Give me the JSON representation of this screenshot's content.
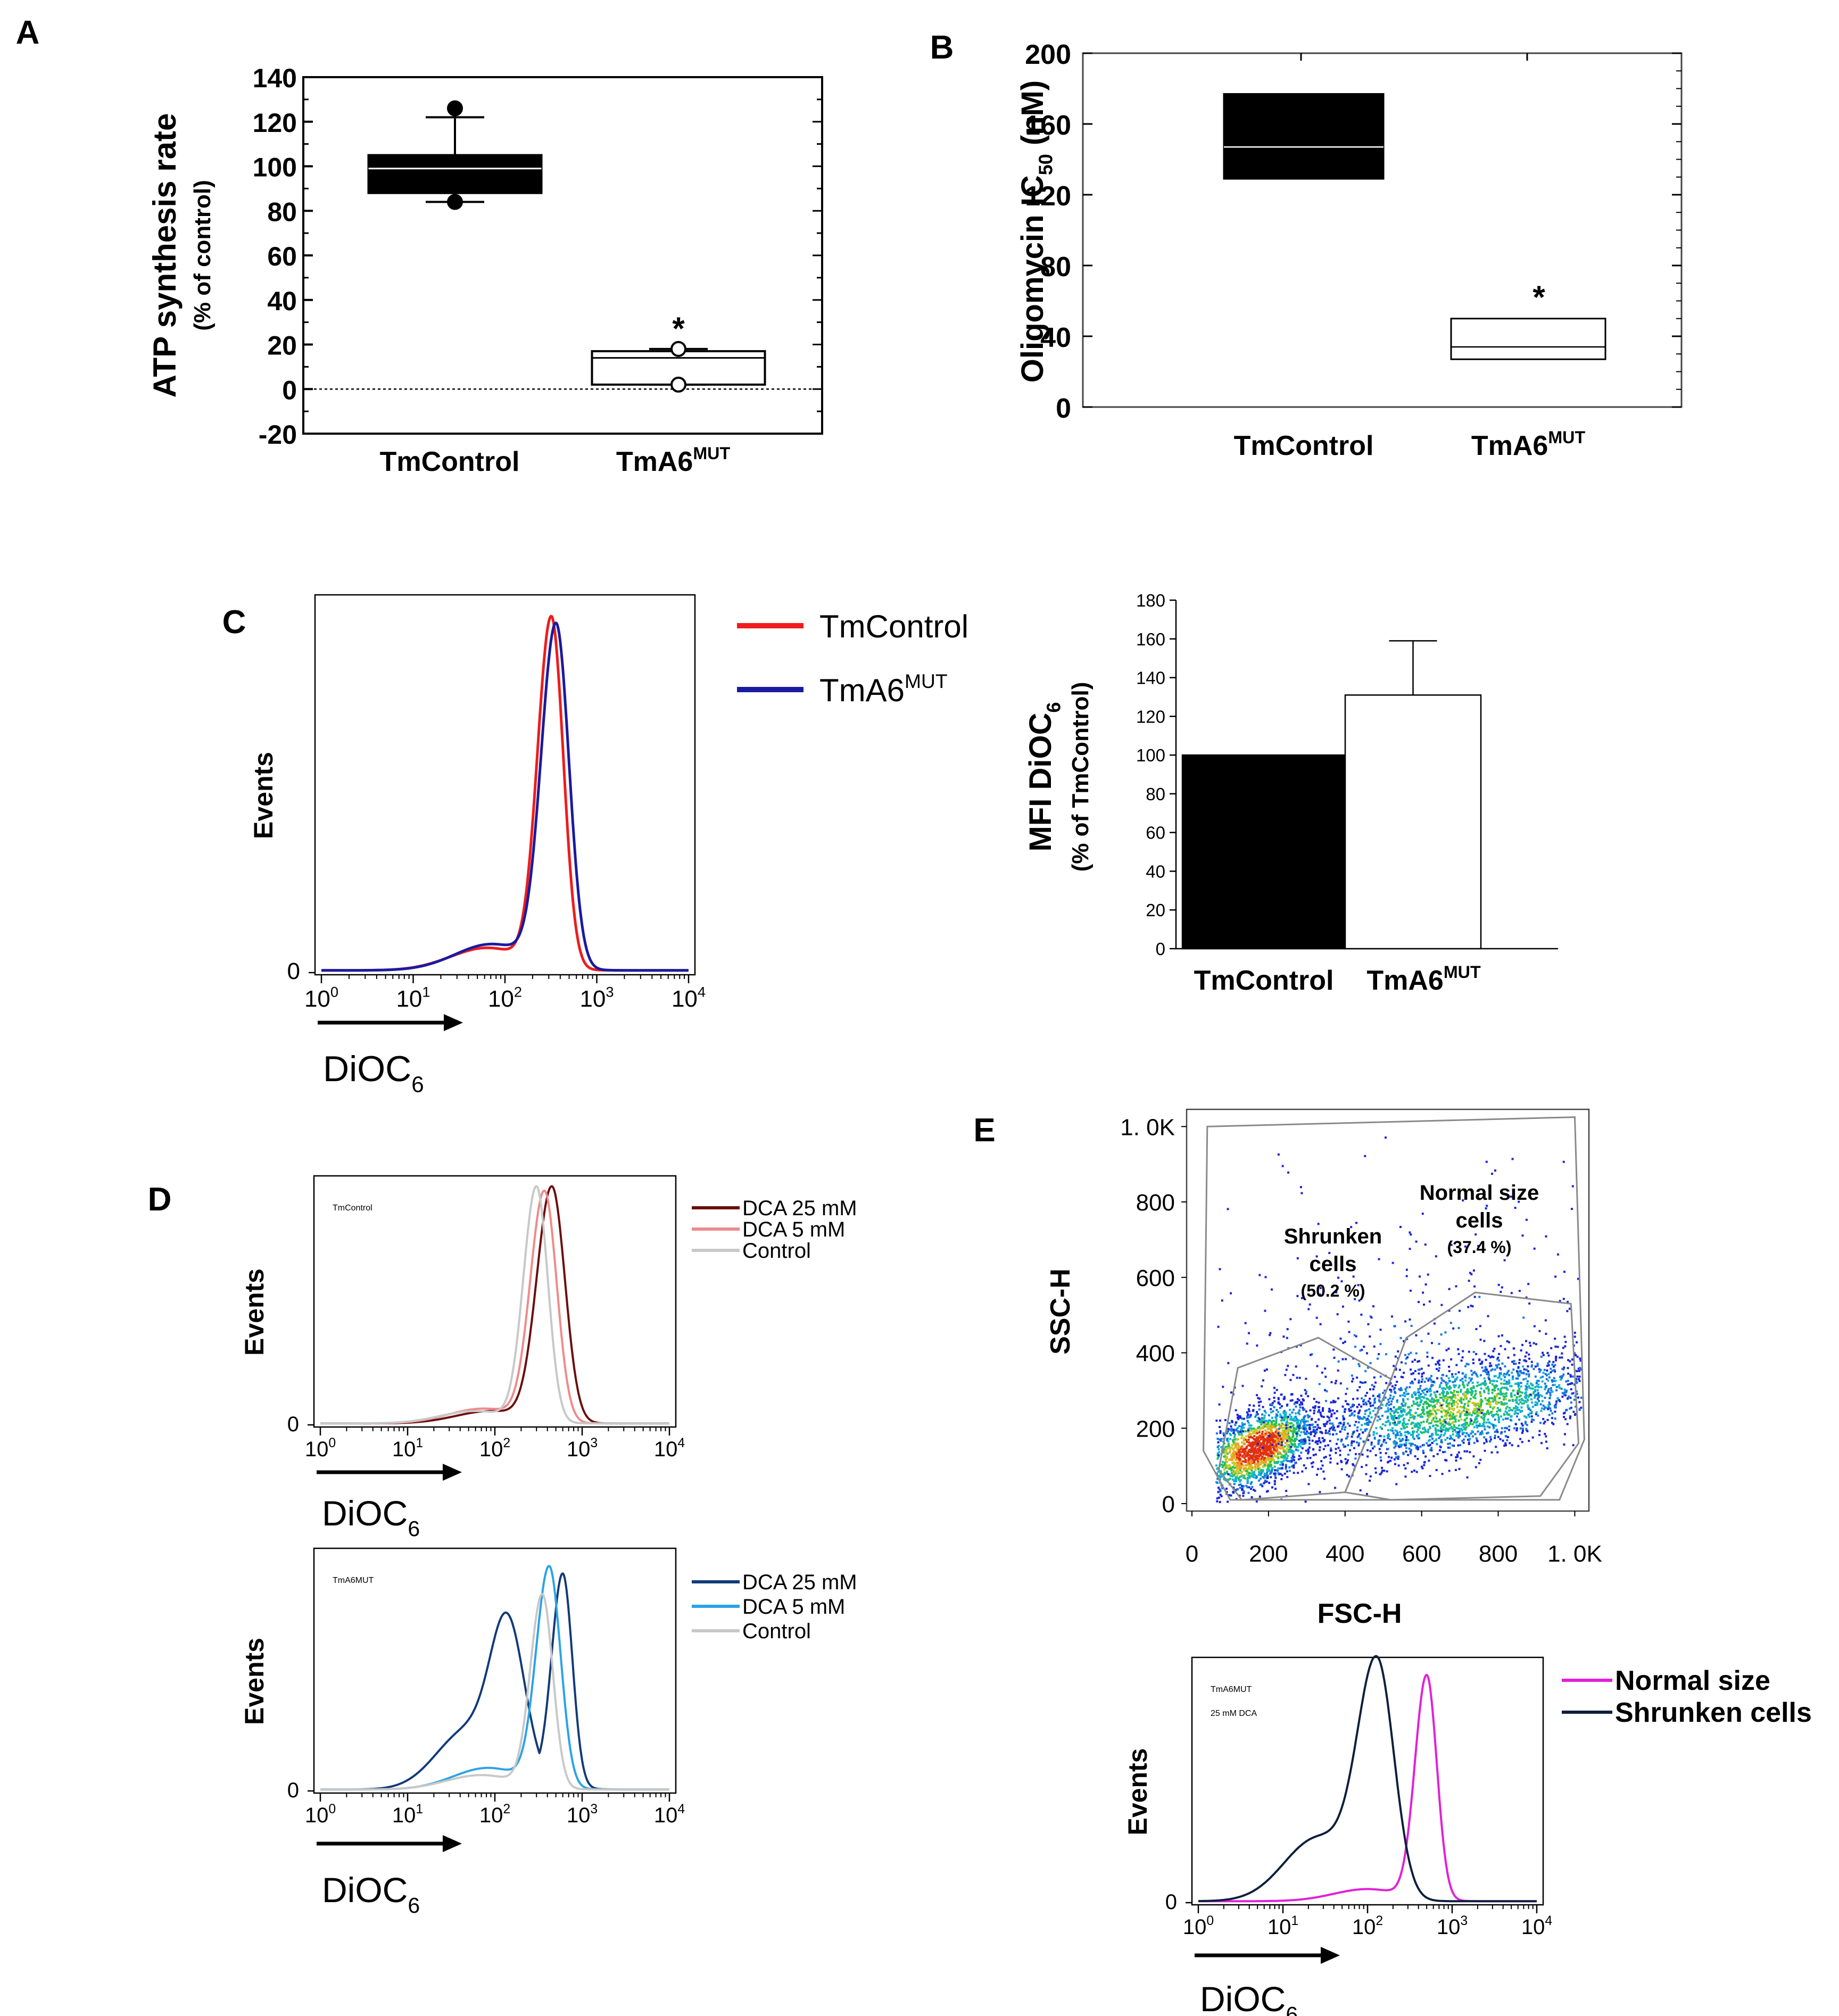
{
  "panel_letters": {
    "A": "A",
    "B": "B",
    "C": "C",
    "D": "D",
    "E": "E"
  },
  "colors": {
    "tm_control_red": "#ee1c1c",
    "tm_a6mut_blue": "#1a1aa0",
    "dca25_control": "#6b0d0d",
    "dca5_control": "#ef8a8a",
    "control_grey": "#c8c8c8",
    "dca25_mut": "#123a78",
    "dca5_mut": "#2aa3e6",
    "normal_size": "#e020d8",
    "shrunken_cells": "#0e1f3d"
  },
  "chart_data": [
    {
      "panel": "A",
      "type": "box",
      "ylabel": "ATP synthesis rate",
      "ylabel_sub": "(% of control)",
      "categories": [
        {
          "label": "TmControl",
          "sup": ""
        },
        {
          "label": "TmA6",
          "sup": "MUT"
        }
      ],
      "yticks": [
        "-20",
        "0",
        "20",
        "40",
        "60",
        "80",
        "100",
        "120",
        "140"
      ],
      "ylim": [
        -20,
        140
      ],
      "boxes": [
        {
          "q1": 88,
          "median": 99,
          "q3": 105,
          "whisker_low": 84,
          "whisker_high": 122,
          "outliers": [
            126,
            84
          ],
          "fill": "black"
        },
        {
          "q1": 2,
          "median": 14,
          "q3": 17,
          "whisker_low": 2,
          "whisker_high": 18,
          "outliers": [
            18,
            2
          ],
          "fill": "white",
          "annotation": "*"
        }
      ],
      "reference_line": 0
    },
    {
      "panel": "B",
      "type": "box",
      "ylabel": "Oligomycin IC",
      "ylabel_sub": "50",
      "ylabel_unit": " (nM)",
      "categories": [
        {
          "label": "TmControl",
          "sup": ""
        },
        {
          "label": "TmA6",
          "sup": "MUT"
        }
      ],
      "yticks": [
        "0",
        "40",
        "80",
        "120",
        "160",
        "200"
      ],
      "ylim": [
        0,
        200
      ],
      "boxes": [
        {
          "q1": 129,
          "median": 147,
          "q3": 177,
          "fill": "black"
        },
        {
          "q1": 27,
          "median": 34,
          "q3": 50,
          "fill": "white",
          "annotation": "*"
        }
      ]
    },
    {
      "panel": "C",
      "type": "line",
      "subtype": "histogram",
      "xlabel": "DiOC",
      "xlabel_sub": "6",
      "ylabel": "Events",
      "yzero": "0",
      "xscale": "log",
      "xlim": [
        1,
        10000
      ],
      "xticks": [
        {
          "base": "10",
          "exp": "0"
        },
        {
          "base": "10",
          "exp": "1"
        },
        {
          "base": "10",
          "exp": "2"
        },
        {
          "base": "10",
          "exp": "3"
        },
        {
          "base": "10",
          "exp": "4"
        }
      ],
      "series": [
        {
          "name": "TmControl",
          "name_sup": "",
          "peak": 320,
          "width": 0.13,
          "left_tail": 0.06,
          "height": 0.93,
          "color": "#ee1c1c"
        },
        {
          "name": "TmA6",
          "name_sup": "MUT",
          "peak": 360,
          "width": 0.14,
          "left_tail": 0.07,
          "height": 0.91,
          "color": "#1a1aa0"
        }
      ]
    },
    {
      "panel": "C",
      "type": "bar",
      "ylabel": "MFI DiOC",
      "ylabel_sub": "6",
      "ylabel2": "(% of TmControl)",
      "categories": [
        {
          "label": "TmControl",
          "sup": ""
        },
        {
          "label": "TmA6",
          "sup": "MUT"
        }
      ],
      "values": [
        100,
        131
      ],
      "errors": [
        0,
        28
      ],
      "yticks": [
        "0",
        "20",
        "40",
        "60",
        "80",
        "100",
        "120",
        "140",
        "160",
        "180"
      ],
      "ylim": [
        0,
        180
      ],
      "fills": [
        "black",
        "white"
      ]
    },
    {
      "panel": "D",
      "type": "line",
      "subtype": "histogram",
      "inset": "TmControl",
      "inset_sup": "",
      "xlabel": "DiOC",
      "xlabel_sub": "6",
      "ylabel": "Events",
      "yzero": "0",
      "xscale": "log",
      "xlim": [
        1,
        10000
      ],
      "xticks": [
        {
          "base": "10",
          "exp": "0"
        },
        {
          "base": "10",
          "exp": "1"
        },
        {
          "base": "10",
          "exp": "2"
        },
        {
          "base": "10",
          "exp": "3"
        },
        {
          "base": "10",
          "exp": "4"
        }
      ],
      "series": [
        {
          "name": "DCA 25 mM",
          "peak": 450,
          "width": 0.15,
          "left_tail": 0.05,
          "height": 0.95,
          "color": "#6b0d0d"
        },
        {
          "name": "DCA 5 mM",
          "peak": 370,
          "width": 0.14,
          "left_tail": 0.06,
          "height": 0.93,
          "color": "#ef8a8a"
        },
        {
          "name": "Control",
          "peak": 300,
          "width": 0.13,
          "left_tail": 0.05,
          "height": 0.95,
          "color": "#c8c8c8"
        }
      ]
    },
    {
      "panel": "D",
      "type": "line",
      "subtype": "histogram",
      "inset": "TmA6",
      "inset_sup": "MUT",
      "xlabel": "DiOC",
      "xlabel_sub": "6",
      "ylabel": "Events",
      "yzero": "0",
      "xscale": "log",
      "xlim": [
        1,
        10000
      ],
      "xticks": [
        {
          "base": "10",
          "exp": "0"
        },
        {
          "base": "10",
          "exp": "1"
        },
        {
          "base": "10",
          "exp": "2"
        },
        {
          "base": "10",
          "exp": "3"
        },
        {
          "base": "10",
          "exp": "4"
        }
      ],
      "series": [
        {
          "name": "DCA 25 mM",
          "peak": 600,
          "width": 0.11,
          "left_tail": 0.08,
          "height": 0.88,
          "color": "#123a78",
          "shoulder_peak": 140,
          "shoulder_height": 0.58,
          "shoulder_width": 0.35
        },
        {
          "name": "DCA 5 mM",
          "peak": 420,
          "width": 0.13,
          "left_tail": 0.09,
          "height": 0.91,
          "color": "#2aa3e6"
        },
        {
          "name": "Control",
          "peak": 350,
          "width": 0.12,
          "left_tail": 0.06,
          "height": 0.8,
          "color": "#c8c8c8"
        }
      ]
    },
    {
      "panel": "E",
      "type": "scatter",
      "subtype": "density",
      "xlabel": "FSC-H",
      "ylabel": "SSC-H",
      "xticks": [
        "0",
        "200",
        "400",
        "600",
        "800",
        "1. 0K"
      ],
      "yticks": [
        "0",
        "200",
        "400",
        "600",
        "800",
        "1. 0K"
      ],
      "xlim": [
        0,
        1023
      ],
      "ylim": [
        0,
        1023
      ],
      "gates": [
        {
          "name": "Shrunken",
          "line2": "cells",
          "percent": "(50.2 %)",
          "polygon": [
            [
              70,
              90
            ],
            [
              120,
              360
            ],
            [
              330,
              440
            ],
            [
              520,
              330
            ],
            [
              400,
              30
            ],
            [
              130,
              10
            ]
          ]
        },
        {
          "name": "Normal size",
          "line2": "cells",
          "percent": "(37.4 %)",
          "polygon": [
            [
              400,
              30
            ],
            [
              520,
              330
            ],
            [
              560,
              440
            ],
            [
              740,
              560
            ],
            [
              990,
              530
            ],
            [
              1010,
              160
            ],
            [
              910,
              20
            ],
            [
              520,
              10
            ]
          ]
        },
        {
          "name": "",
          "polygon": [
            [
              30,
              140
            ],
            [
              40,
              1000
            ],
            [
              1000,
              1025
            ],
            [
              1025,
              170
            ],
            [
              960,
              10
            ],
            [
              100,
              10
            ]
          ]
        }
      ]
    },
    {
      "panel": "E",
      "type": "line",
      "subtype": "histogram",
      "inset": "TmA6",
      "inset_sup": "MUT",
      "inset_line2": "25 mM DCA",
      "xlabel": "DiOC",
      "xlabel_sub": "6",
      "ylabel": "Events",
      "yzero": "0",
      "xscale": "log",
      "xlim": [
        1,
        10000
      ],
      "xticks": [
        {
          "base": "10",
          "exp": "0"
        },
        {
          "base": "10",
          "exp": "1"
        },
        {
          "base": "10",
          "exp": "2"
        },
        {
          "base": "10",
          "exp": "3"
        },
        {
          "base": "10",
          "exp": "4"
        }
      ],
      "series": [
        {
          "name": "Normal size",
          "peak": 500,
          "width": 0.12,
          "left_tail": 0.05,
          "height": 0.92,
          "color": "#e020d8"
        },
        {
          "name": "Shrunken cells",
          "peak": 130,
          "width": 0.2,
          "left_tail": 0.26,
          "height": 0.95,
          "color": "#0e1f3d"
        }
      ]
    }
  ]
}
